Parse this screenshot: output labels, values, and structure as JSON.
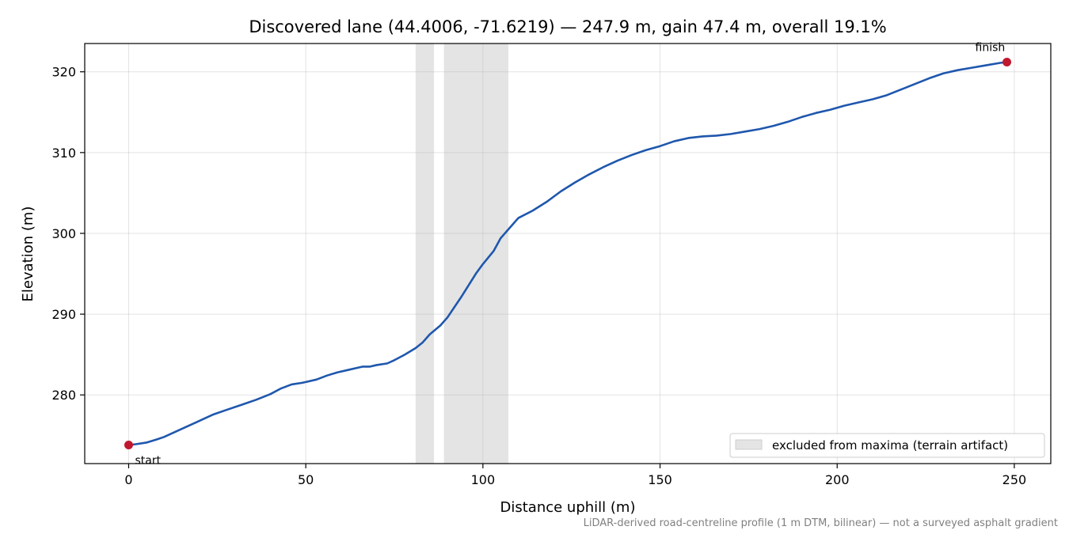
{
  "chart_data": {
    "type": "line",
    "title": "Discovered lane (44.4006, -71.6219) — 247.9 m, gain 47.4 m, overall 19.1%",
    "xlabel": "Distance uphill (m)",
    "ylabel": "Elevation (m)",
    "xlim": [
      -12.4,
      260.3
    ],
    "ylim": [
      271.5,
      323.5
    ],
    "xticks": [
      0,
      50,
      100,
      150,
      200,
      250
    ],
    "yticks": [
      280,
      290,
      300,
      310,
      320
    ],
    "grid": true,
    "legend_position": "lower-right",
    "series": [
      {
        "color": "#1f57ad",
        "x": [
          0,
          2,
          5,
          8,
          10,
          13,
          16,
          20,
          24,
          28,
          32,
          36,
          40,
          43,
          46,
          49,
          50,
          53,
          56,
          59,
          62,
          64,
          66,
          68,
          70,
          73,
          75,
          78,
          81,
          83,
          85,
          88,
          90,
          92,
          94,
          96,
          98,
          100,
          103,
          105,
          107,
          110,
          114,
          118,
          122,
          126,
          130,
          134,
          138,
          142,
          146,
          150,
          154,
          158,
          162,
          166,
          170,
          174,
          178,
          182,
          186,
          190,
          194,
          198,
          202,
          206,
          210,
          214,
          218,
          222,
          226,
          230,
          234,
          238,
          242,
          246,
          247.9
        ],
        "y": [
          273.8,
          273.9,
          274.1,
          274.5,
          274.8,
          275.4,
          276.0,
          276.8,
          277.6,
          278.2,
          278.8,
          279.4,
          280.1,
          280.8,
          281.3,
          281.5,
          281.6,
          281.9,
          282.4,
          282.8,
          283.1,
          283.3,
          283.5,
          283.5,
          283.7,
          283.9,
          284.3,
          285.0,
          285.8,
          286.5,
          287.5,
          288.6,
          289.6,
          290.9,
          292.2,
          293.6,
          295.0,
          296.2,
          297.8,
          299.4,
          300.4,
          301.9,
          302.8,
          303.9,
          305.2,
          306.3,
          307.3,
          308.2,
          309.0,
          309.7,
          310.3,
          310.8,
          311.4,
          311.8,
          312.0,
          312.1,
          312.3,
          312.6,
          312.9,
          313.3,
          313.8,
          314.4,
          314.9,
          315.3,
          315.8,
          316.2,
          316.6,
          317.1,
          317.8,
          318.5,
          319.2,
          319.8,
          320.2,
          320.5,
          320.8,
          321.1,
          321.2
        ]
      }
    ],
    "excluded_regions": [
      [
        81,
        86.2
      ],
      [
        89,
        107.2
      ]
    ],
    "excluded_color": "#e4e4e4",
    "legend": {
      "excluded_label": "excluded from maxima (terrain artifact)"
    },
    "markers": [
      {
        "label": "start",
        "x": 0,
        "y": 273.8,
        "color": "#c0182e"
      },
      {
        "label": "finish",
        "x": 247.9,
        "y": 321.2,
        "color": "#c0182e"
      }
    ],
    "footnote": "LiDAR-derived road-centreline profile (1 m DTM, bilinear) — not a surveyed asphalt gradient"
  }
}
